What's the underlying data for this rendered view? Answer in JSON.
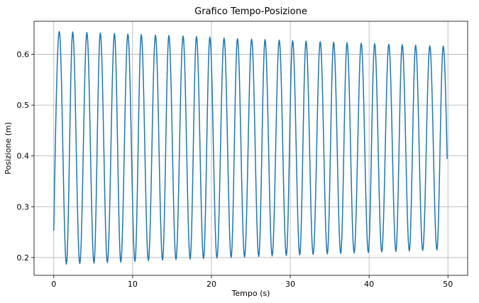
{
  "chart_data": {
    "type": "line",
    "title": "Grafico Tempo-Posizione",
    "xlabel": "Tempo (s)",
    "ylabel": "Posizione (m)",
    "xlim": [
      -2.5,
      52.5
    ],
    "ylim": [
      0.165,
      0.665
    ],
    "xticks": [
      0,
      10,
      20,
      30,
      40,
      50
    ],
    "yticks": [
      0.2,
      0.3,
      0.4,
      0.5,
      0.6
    ],
    "ytick_labels": [
      "0.2",
      "0.3",
      "0.4",
      "0.5",
      "0.6"
    ],
    "grid": true,
    "line_color": "#1f77b4",
    "series": [
      {
        "x_start": 0,
        "x_end": 49.9,
        "y_start": 0.253,
        "y_end": 0.394,
        "period": 1.75,
        "peaks": [
          [
            0.7,
            0.645
          ],
          [
            2.4,
            0.644
          ],
          [
            4.2,
            0.643
          ],
          [
            5.9,
            0.642
          ],
          [
            7.7,
            0.641
          ],
          [
            9.4,
            0.64
          ],
          [
            11.1,
            0.639
          ],
          [
            12.9,
            0.638
          ],
          [
            14.6,
            0.637
          ],
          [
            16.4,
            0.636
          ],
          [
            18.1,
            0.635
          ],
          [
            19.8,
            0.634
          ],
          [
            21.6,
            0.632
          ],
          [
            23.3,
            0.631
          ],
          [
            25.1,
            0.63
          ],
          [
            26.8,
            0.629
          ],
          [
            28.6,
            0.628
          ],
          [
            30.3,
            0.627
          ],
          [
            32.0,
            0.626
          ],
          [
            33.8,
            0.625
          ],
          [
            35.5,
            0.624
          ],
          [
            37.2,
            0.623
          ],
          [
            39.0,
            0.622
          ],
          [
            40.7,
            0.621
          ],
          [
            42.5,
            0.62
          ],
          [
            44.2,
            0.619
          ],
          [
            45.9,
            0.618
          ],
          [
            47.7,
            0.617
          ],
          [
            49.4,
            0.616
          ]
        ],
        "troughs": [
          [
            1.6,
            0.187
          ],
          [
            3.3,
            0.188
          ],
          [
            5.1,
            0.189
          ],
          [
            6.8,
            0.19
          ],
          [
            8.5,
            0.191
          ],
          [
            10.3,
            0.192
          ],
          [
            12.0,
            0.194
          ],
          [
            13.8,
            0.195
          ],
          [
            15.5,
            0.196
          ],
          [
            17.3,
            0.197
          ],
          [
            19.0,
            0.198
          ],
          [
            20.7,
            0.199
          ],
          [
            22.5,
            0.2
          ],
          [
            24.2,
            0.201
          ],
          [
            26.0,
            0.202
          ],
          [
            27.7,
            0.203
          ],
          [
            29.5,
            0.204
          ],
          [
            31.2,
            0.205
          ],
          [
            32.9,
            0.206
          ],
          [
            34.7,
            0.207
          ],
          [
            36.4,
            0.208
          ],
          [
            38.1,
            0.209
          ],
          [
            39.9,
            0.21
          ],
          [
            41.6,
            0.211
          ],
          [
            43.4,
            0.212
          ],
          [
            45.1,
            0.213
          ],
          [
            46.8,
            0.214
          ],
          [
            48.6,
            0.215
          ]
        ]
      }
    ]
  }
}
